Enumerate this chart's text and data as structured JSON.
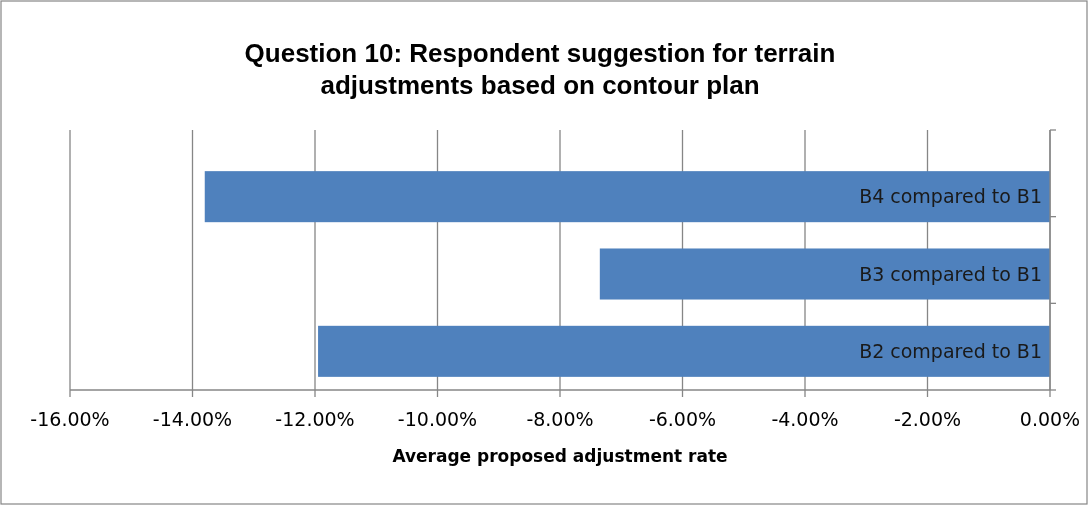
{
  "chart_data": {
    "type": "bar",
    "orientation": "horizontal",
    "title": "Question 10: Respondent suggestion for terrain adjustments based on contour plan",
    "xlabel": "Average proposed adjustment rate",
    "categories": [
      "B4 compared to B1",
      "B3 compared to B1",
      "B2 compared to B1"
    ],
    "values": [
      -13.8,
      -7.35,
      -11.95
    ],
    "color": "#4f81bd",
    "xlim": [
      -16,
      0
    ],
    "xticks": [
      {
        "value": -16,
        "label": "-16.00%"
      },
      {
        "value": -14,
        "label": "-14.00%"
      },
      {
        "value": -12,
        "label": "-12.00%"
      },
      {
        "value": -10,
        "label": "-10.00%"
      },
      {
        "value": -8,
        "label": "-8.00%"
      },
      {
        "value": -6,
        "label": "-6.00%"
      },
      {
        "value": -4,
        "label": "-4.00%"
      },
      {
        "value": -2,
        "label": "-2.00%"
      },
      {
        "value": 0,
        "label": "0.00%"
      }
    ],
    "grid": "x"
  }
}
